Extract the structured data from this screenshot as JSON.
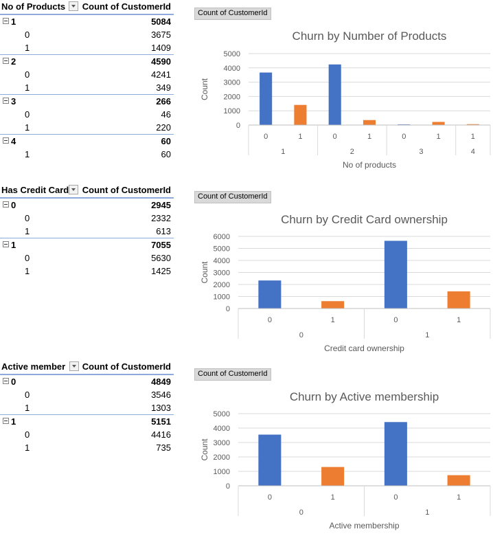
{
  "colors": {
    "series0": "#4472c4",
    "series1": "#ed7d31",
    "pivot_border": "#8ea9db"
  },
  "pivots": [
    {
      "header_label": "No of Products",
      "header_value": "Count of CustomerId",
      "groups": [
        {
          "label": "1",
          "total": "5084",
          "rows": [
            {
              "label": "0",
              "value": "3675"
            },
            {
              "label": "1",
              "value": "1409"
            }
          ]
        },
        {
          "label": "2",
          "total": "4590",
          "rows": [
            {
              "label": "0",
              "value": "4241"
            },
            {
              "label": "1",
              "value": "349"
            }
          ]
        },
        {
          "label": "3",
          "total": "266",
          "rows": [
            {
              "label": "0",
              "value": "46"
            },
            {
              "label": "1",
              "value": "220"
            }
          ]
        },
        {
          "label": "4",
          "total": "60",
          "rows": [
            {
              "label": "1",
              "value": "60"
            }
          ]
        }
      ]
    },
    {
      "header_label": "Has Credit Card",
      "header_value": "Count of CustomerId",
      "groups": [
        {
          "label": "0",
          "total": "2945",
          "rows": [
            {
              "label": "0",
              "value": "2332"
            },
            {
              "label": "1",
              "value": "613"
            }
          ]
        },
        {
          "label": "1",
          "total": "7055",
          "rows": [
            {
              "label": "0",
              "value": "5630"
            },
            {
              "label": "1",
              "value": "1425"
            }
          ]
        }
      ]
    },
    {
      "header_label": "Active member",
      "header_value": "Count of CustomerId",
      "groups": [
        {
          "label": "0",
          "total": "4849",
          "rows": [
            {
              "label": "0",
              "value": "3546"
            },
            {
              "label": "1",
              "value": "1303"
            }
          ]
        },
        {
          "label": "1",
          "total": "5151",
          "rows": [
            {
              "label": "0",
              "value": "4416"
            },
            {
              "label": "1",
              "value": "735"
            }
          ]
        }
      ]
    }
  ],
  "chart_data": [
    {
      "type": "bar",
      "badge": "Count of CustomerId",
      "title": "Churn by Number of Products",
      "xlabel": "No of products",
      "ylabel": "Count",
      "ylim": [
        0,
        5000
      ],
      "yticks": [
        0,
        1000,
        2000,
        3000,
        4000,
        5000
      ],
      "grid": true,
      "groups": [
        {
          "label": "1",
          "items": [
            {
              "label": "0",
              "value": 3675,
              "series": 0
            },
            {
              "label": "1",
              "value": 1409,
              "series": 1
            }
          ]
        },
        {
          "label": "2",
          "items": [
            {
              "label": "0",
              "value": 4241,
              "series": 0
            },
            {
              "label": "1",
              "value": 349,
              "series": 1
            }
          ]
        },
        {
          "label": "3",
          "items": [
            {
              "label": "0",
              "value": 46,
              "series": 0
            },
            {
              "label": "1",
              "value": 220,
              "series": 1
            }
          ]
        },
        {
          "label": "4",
          "items": [
            {
              "label": "1",
              "value": 60,
              "series": 1
            }
          ]
        }
      ]
    },
    {
      "type": "bar",
      "badge": "Count of CustomerId",
      "title": "Churn by Credit Card ownership",
      "xlabel": "Credit card ownership",
      "ylabel": "Count",
      "ylim": [
        0,
        6000
      ],
      "yticks": [
        0,
        1000,
        2000,
        3000,
        4000,
        5000,
        6000
      ],
      "grid": true,
      "groups": [
        {
          "label": "0",
          "items": [
            {
              "label": "0",
              "value": 2332,
              "series": 0
            },
            {
              "label": "1",
              "value": 613,
              "series": 1
            }
          ]
        },
        {
          "label": "1",
          "items": [
            {
              "label": "0",
              "value": 5630,
              "series": 0
            },
            {
              "label": "1",
              "value": 1425,
              "series": 1
            }
          ]
        }
      ]
    },
    {
      "type": "bar",
      "badge": "Count of CustomerId",
      "title": "Churn by Active membership",
      "xlabel": "Active membership",
      "ylabel": "Count",
      "ylim": [
        0,
        5000
      ],
      "yticks": [
        0,
        1000,
        2000,
        3000,
        4000,
        5000
      ],
      "grid": true,
      "groups": [
        {
          "label": "0",
          "items": [
            {
              "label": "0",
              "value": 3546,
              "series": 0
            },
            {
              "label": "1",
              "value": 1303,
              "series": 1
            }
          ]
        },
        {
          "label": "1",
          "items": [
            {
              "label": "0",
              "value": 4416,
              "series": 0
            },
            {
              "label": "1",
              "value": 735,
              "series": 1
            }
          ]
        }
      ]
    }
  ]
}
